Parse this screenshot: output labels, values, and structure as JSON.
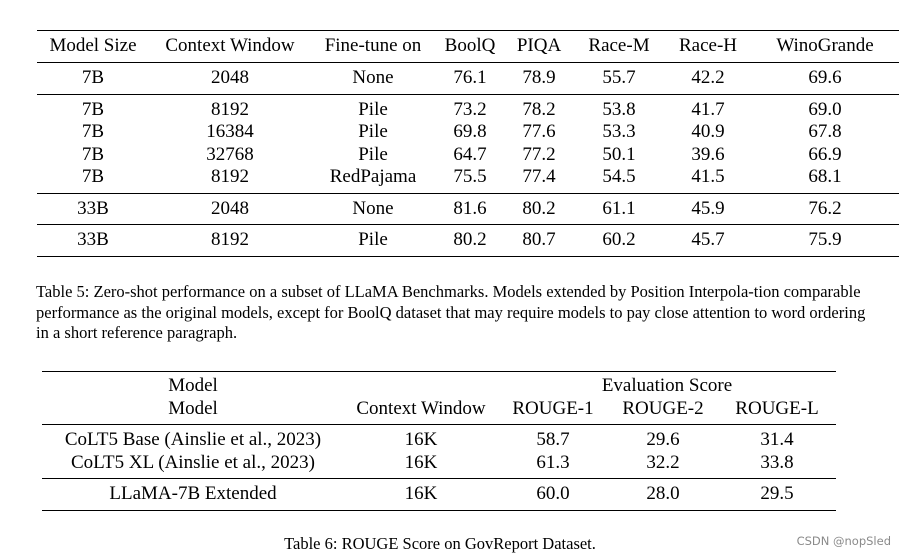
{
  "table5": {
    "columns": [
      "Model Size",
      "Context Window",
      "Fine-tune on",
      "BoolQ",
      "PIQA",
      "Race-M",
      "Race-H",
      "WinoGrande"
    ],
    "groups": [
      [
        [
          "7B",
          "2048",
          "None",
          "76.1",
          "78.9",
          "55.7",
          "42.2",
          "69.6"
        ]
      ],
      [
        [
          "7B",
          "8192",
          "Pile",
          "73.2",
          "78.2",
          "53.8",
          "41.7",
          "69.0"
        ],
        [
          "7B",
          "16384",
          "Pile",
          "69.8",
          "77.6",
          "53.3",
          "40.9",
          "67.8"
        ],
        [
          "7B",
          "32768",
          "Pile",
          "64.7",
          "77.2",
          "50.1",
          "39.6",
          "66.9"
        ],
        [
          "7B",
          "8192",
          "RedPajama",
          "75.5",
          "77.4",
          "54.5",
          "41.5",
          "68.1"
        ]
      ],
      [
        [
          "33B",
          "2048",
          "None",
          "81.6",
          "80.2",
          "61.1",
          "45.9",
          "76.2"
        ]
      ],
      [
        [
          "33B",
          "8192",
          "Pile",
          "80.2",
          "80.7",
          "60.2",
          "45.7",
          "75.9"
        ]
      ]
    ],
    "caption": "Table 5: Zero-shot performance on a subset of LLaMA Benchmarks. Models extended by Position Interpola-tion comparable performance as the original models, except for BoolQ dataset that may require models to pay close attention to word ordering in a short reference paragraph."
  },
  "table6": {
    "super_header": {
      "model": "Model",
      "evaluation": "Evaluation Score"
    },
    "columns": [
      "Model",
      "Context Window",
      "ROUGE-1",
      "ROUGE-2",
      "ROUGE-L"
    ],
    "groups": [
      [
        [
          "CoLT5 Base (Ainslie et al., 2023)",
          "16K",
          "58.7",
          "29.6",
          "31.4"
        ],
        [
          "CoLT5 XL (Ainslie et al., 2023)",
          "16K",
          "61.3",
          "32.2",
          "33.8"
        ]
      ],
      [
        [
          "LLaMA-7B Extended",
          "16K",
          "60.0",
          "28.0",
          "29.5"
        ]
      ]
    ],
    "caption": "Table 6: ROUGE Score on GovReport Dataset."
  },
  "watermark": "CSDN @nopSled"
}
